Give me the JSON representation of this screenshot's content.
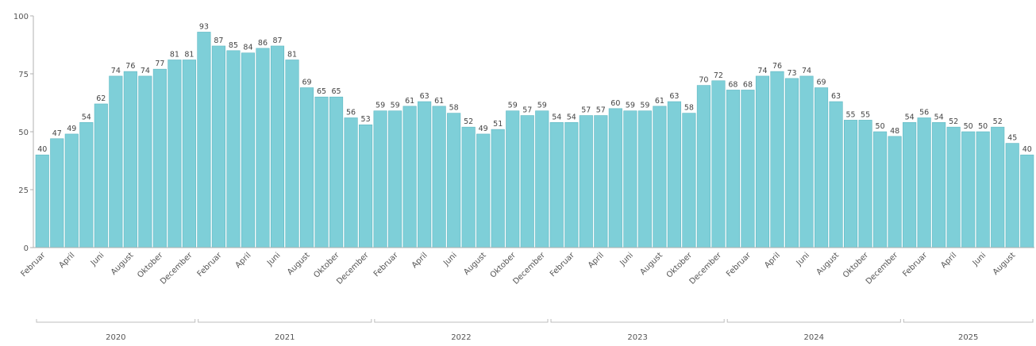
{
  "chart_data": {
    "type": "bar",
    "bar_color": "#7ecfd8",
    "bar_stroke": "#5fb8c3",
    "ylim": [
      0,
      100
    ],
    "yticks": [
      0,
      25,
      50,
      75,
      100
    ],
    "values": [
      40,
      47,
      49,
      54,
      62,
      74,
      76,
      74,
      77,
      81,
      81,
      93,
      87,
      85,
      84,
      86,
      87,
      81,
      69,
      65,
      65,
      56,
      53,
      59,
      59,
      61,
      63,
      61,
      58,
      52,
      49,
      51,
      59,
      57,
      59,
      54,
      54,
      57,
      57,
      60,
      59,
      59,
      61,
      63,
      58,
      70,
      72,
      68,
      68,
      74,
      76,
      73,
      74,
      69,
      63,
      55,
      55,
      50,
      48,
      54,
      56,
      54,
      52,
      50,
      50,
      52,
      45,
      40
    ],
    "month_labels": [
      {
        "index": 0,
        "label": "Februar"
      },
      {
        "index": 2,
        "label": "April"
      },
      {
        "index": 4,
        "label": "Juni"
      },
      {
        "index": 6,
        "label": "August"
      },
      {
        "index": 8,
        "label": "Oktober"
      },
      {
        "index": 10,
        "label": "December"
      },
      {
        "index": 12,
        "label": "Februar"
      },
      {
        "index": 14,
        "label": "April"
      },
      {
        "index": 16,
        "label": "Juni"
      },
      {
        "index": 18,
        "label": "August"
      },
      {
        "index": 20,
        "label": "Oktober"
      },
      {
        "index": 22,
        "label": "December"
      },
      {
        "index": 24,
        "label": "Februar"
      },
      {
        "index": 26,
        "label": "April"
      },
      {
        "index": 28,
        "label": "Juni"
      },
      {
        "index": 30,
        "label": "August"
      },
      {
        "index": 32,
        "label": "Oktober"
      },
      {
        "index": 34,
        "label": "December"
      },
      {
        "index": 36,
        "label": "Februar"
      },
      {
        "index": 38,
        "label": "April"
      },
      {
        "index": 40,
        "label": "Juni"
      },
      {
        "index": 42,
        "label": "August"
      },
      {
        "index": 44,
        "label": "Oktober"
      },
      {
        "index": 46,
        "label": "December"
      },
      {
        "index": 48,
        "label": "Februar"
      },
      {
        "index": 50,
        "label": "April"
      },
      {
        "index": 52,
        "label": "Juni"
      },
      {
        "index": 54,
        "label": "August"
      },
      {
        "index": 56,
        "label": "Oktober"
      },
      {
        "index": 58,
        "label": "December"
      },
      {
        "index": 60,
        "label": "Februar"
      },
      {
        "index": 62,
        "label": "April"
      },
      {
        "index": 64,
        "label": "Juni"
      },
      {
        "index": 66,
        "label": "August"
      }
    ],
    "years": [
      {
        "label": "2020",
        "start": 0,
        "end": 10
      },
      {
        "label": "2021",
        "start": 11,
        "end": 22
      },
      {
        "label": "2022",
        "start": 23,
        "end": 34
      },
      {
        "label": "2023",
        "start": 35,
        "end": 46
      },
      {
        "label": "2024",
        "start": 47,
        "end": 58
      },
      {
        "label": "2025",
        "start": 59,
        "end": 67
      }
    ],
    "grid": false,
    "legend": "none"
  }
}
